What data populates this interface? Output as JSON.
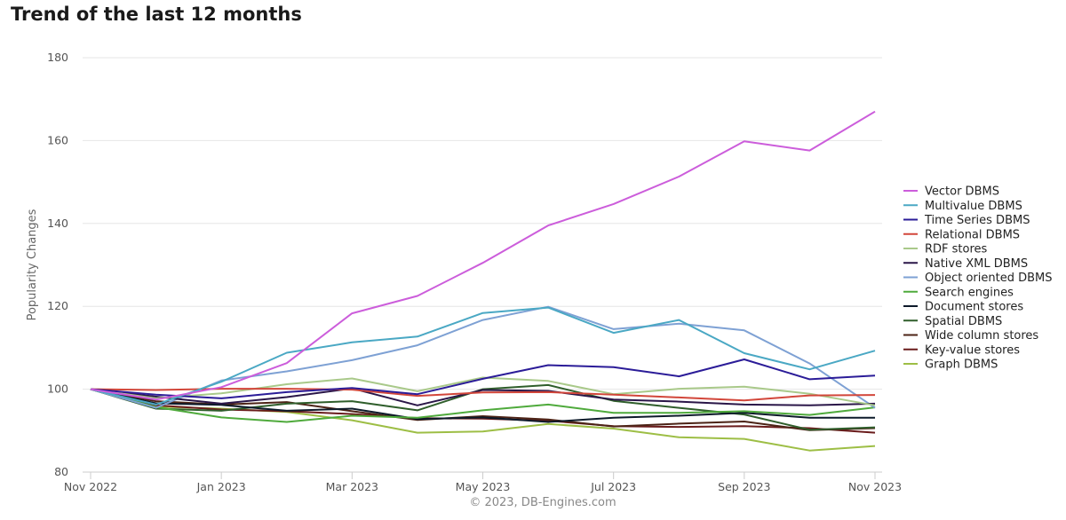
{
  "chart_data": {
    "type": "line",
    "title": "Trend of the last 12 months",
    "xlabel": "",
    "ylabel": "Popularity Changes",
    "ylim": [
      80,
      180
    ],
    "yticks": [
      80,
      100,
      120,
      140,
      160,
      180
    ],
    "x": [
      "Nov 2022",
      "Dec 2022",
      "Jan 2023",
      "Feb 2023",
      "Mar 2023",
      "Apr 2023",
      "May 2023",
      "Jun 2023",
      "Jul 2023",
      "Aug 2023",
      "Sep 2023",
      "Oct 2023",
      "Nov 2023"
    ],
    "xtick_labels": [
      "Nov 2022",
      "Jan 2023",
      "Mar 2023",
      "May 2023",
      "Jul 2023",
      "Sep 2023",
      "Nov 2023"
    ],
    "grid": "horizontal",
    "legend_position": "right",
    "credit": "© 2023, DB-Engines.com",
    "series": [
      {
        "name": "Vector DBMS",
        "color": "#cc5ddb",
        "values": [
          100,
          97.5,
          100.5,
          106.3,
          118.3,
          122.5,
          130.5,
          139.5,
          144.7,
          151.3,
          159.8,
          157.6,
          167
        ]
      },
      {
        "name": "Multivalue DBMS",
        "color": "#4aa8c4",
        "values": [
          100,
          96.3,
          101.8,
          108.8,
          111.3,
          112.7,
          118.4,
          119.7,
          113.6,
          116.7,
          108.7,
          104.8,
          109.3
        ]
      },
      {
        "name": "Time Series DBMS",
        "color": "#2b1c98",
        "values": [
          100,
          98.7,
          97.8,
          99.3,
          100.3,
          98.8,
          102.5,
          105.8,
          105.3,
          103.1,
          107.2,
          102.4,
          103.3
        ]
      },
      {
        "name": "Relational DBMS",
        "color": "#d2463a",
        "values": [
          100,
          99.8,
          100.1,
          100.1,
          99.9,
          98.4,
          99.2,
          99.3,
          98.7,
          98.0,
          97.3,
          98.5,
          98.6
        ]
      },
      {
        "name": "RDF stores",
        "color": "#a9c98a",
        "values": [
          100,
          97.8,
          99.0,
          101.2,
          102.6,
          99.5,
          102.8,
          102.0,
          98.8,
          100.1,
          100.6,
          98.9,
          96.1
        ]
      },
      {
        "name": "Native XML DBMS",
        "color": "#2a1648",
        "values": [
          100,
          98.2,
          96.5,
          98.1,
          100.2,
          96.1,
          99.8,
          99.6,
          97.5,
          97.0,
          96.3,
          96.1,
          96.5
        ]
      },
      {
        "name": "Object oriented DBMS",
        "color": "#7ea1d4",
        "values": [
          100,
          95.5,
          102.1,
          104.3,
          107.0,
          110.6,
          116.7,
          119.9,
          114.5,
          115.8,
          114.2,
          106.2,
          95.5
        ]
      },
      {
        "name": "Search engines",
        "color": "#4faa3c",
        "values": [
          100,
          95.7,
          93.2,
          92.1,
          93.6,
          93.1,
          94.9,
          96.3,
          94.3,
          94.3,
          94.7,
          93.8,
          95.6
        ]
      },
      {
        "name": "Document stores",
        "color": "#0d1a2a",
        "values": [
          100,
          96.6,
          96.2,
          94.8,
          95.3,
          92.8,
          93.2,
          92.1,
          93.1,
          93.6,
          94.3,
          93.1,
          93.1
        ]
      },
      {
        "name": "Spatial DBMS",
        "color": "#2f5e2b",
        "values": [
          100,
          95.3,
          94.8,
          96.5,
          97.1,
          94.9,
          100.0,
          101.0,
          97.2,
          95.5,
          93.9,
          90.2,
          90.8
        ]
      },
      {
        "name": "Wide column stores",
        "color": "#4c2316",
        "values": [
          100,
          97.1,
          96.3,
          96.9,
          94.7,
          92.6,
          93.5,
          92.7,
          91.0,
          91.7,
          92.2,
          90.1,
          90.6
        ]
      },
      {
        "name": "Key-value stores",
        "color": "#6a1c1c",
        "values": [
          100,
          96.1,
          95.1,
          94.7,
          94.0,
          93.0,
          92.9,
          92.4,
          91.1,
          90.9,
          91.1,
          90.6,
          89.5
        ]
      },
      {
        "name": "Graph DBMS",
        "color": "#9dbe45",
        "values": [
          100,
          95.8,
          95.3,
          94.5,
          92.5,
          89.5,
          89.8,
          91.6,
          90.5,
          88.4,
          88.0,
          85.2,
          86.3
        ]
      }
    ]
  }
}
